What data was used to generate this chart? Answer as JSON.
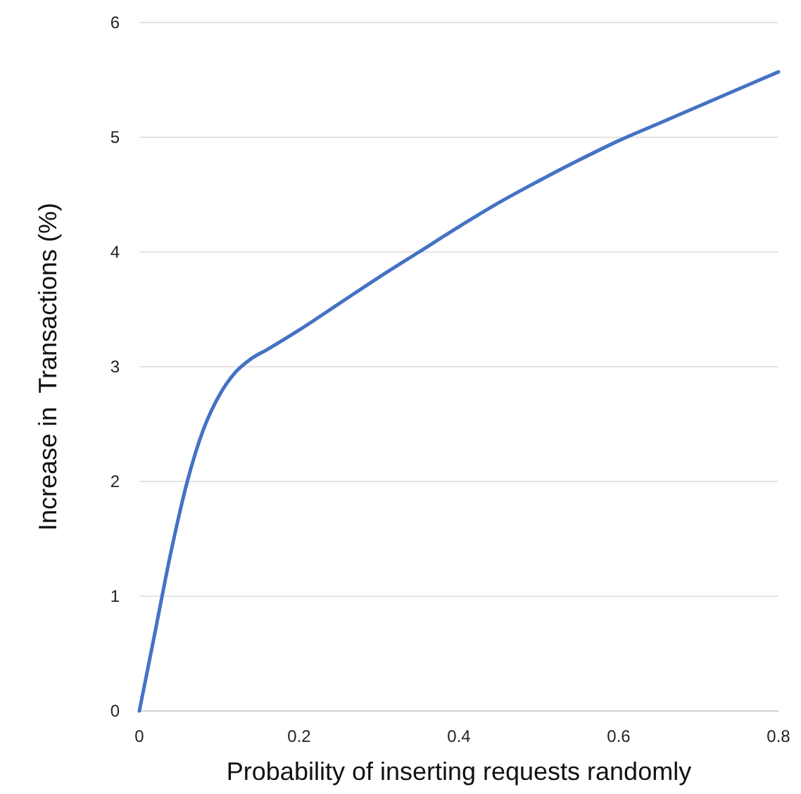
{
  "chart_data": {
    "type": "line",
    "xlabel": "Probability of inserting requests randomly",
    "ylabel": "Increase in  Transactions (%)",
    "x": [
      0,
      0.02,
      0.04,
      0.06,
      0.08,
      0.1,
      0.12,
      0.14,
      0.16,
      0.2,
      0.25,
      0.3,
      0.35,
      0.4,
      0.45,
      0.5,
      0.55,
      0.6,
      0.65,
      0.7,
      0.75,
      0.8
    ],
    "series": [
      {
        "color": "#4472c4",
        "values": [
          0,
          0.7,
          1.4,
          2.0,
          2.45,
          2.75,
          2.95,
          3.07,
          3.15,
          3.32,
          3.55,
          3.78,
          4.0,
          4.22,
          4.43,
          4.62,
          4.8,
          4.97,
          5.12,
          5.27,
          5.42,
          5.57
        ]
      }
    ],
    "xlim": [
      0,
      0.8
    ],
    "xticks": [
      0,
      0.2,
      0.4,
      0.6,
      0.8
    ],
    "ylim": [
      0,
      6
    ],
    "yticks": [
      0,
      1,
      2,
      3,
      4,
      5,
      6
    ],
    "grid": "y",
    "marker": "none",
    "line_style": "solid"
  }
}
